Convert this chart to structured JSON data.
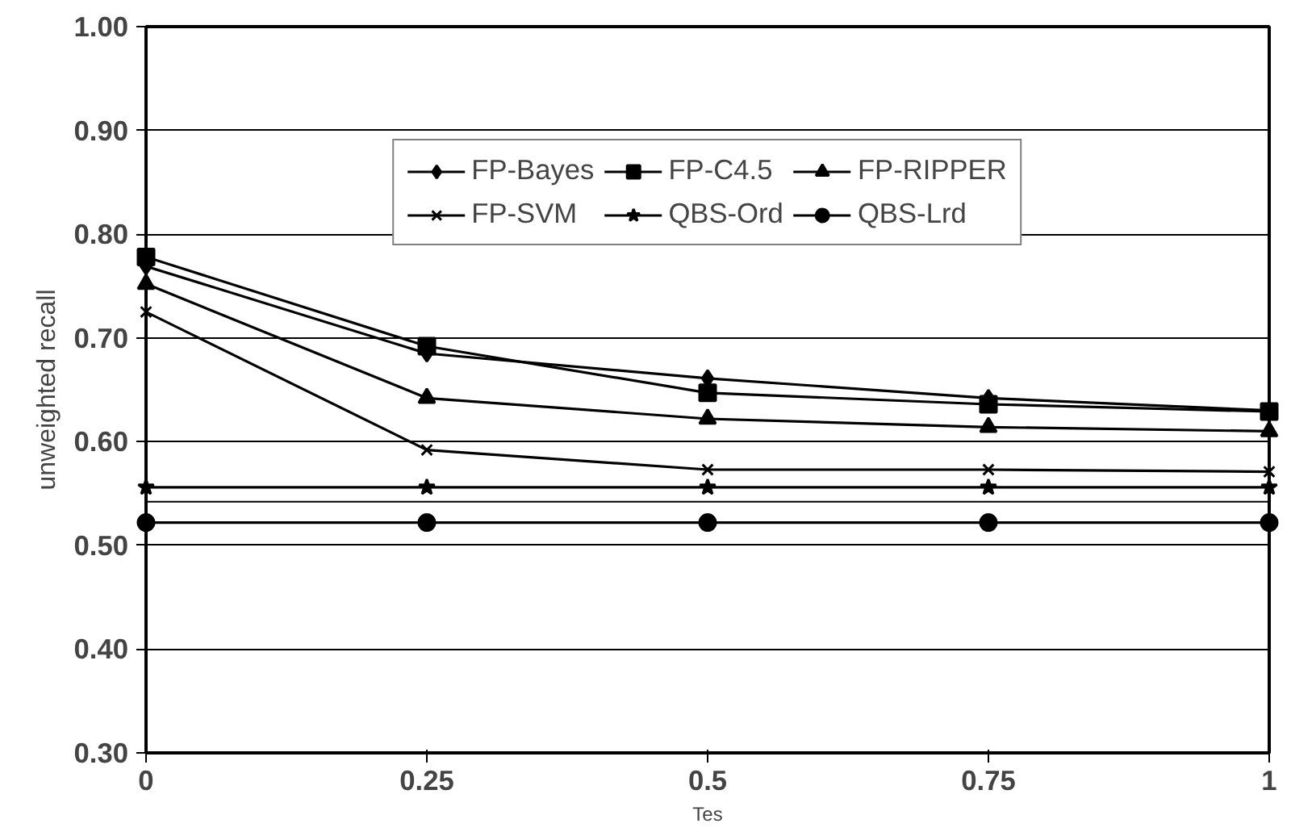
{
  "chart_data": {
    "type": "line",
    "xlabel": "Tes",
    "ylabel": "unweighted recall",
    "x": [
      0,
      0.25,
      0.5,
      0.75,
      1
    ],
    "xlim": [
      0,
      1
    ],
    "xticks": [
      0,
      0.25,
      0.5,
      0.75,
      1
    ],
    "ylim": [
      0.3,
      1.0
    ],
    "yticks": [
      {
        "value": 0.3,
        "label": "0.30"
      },
      {
        "value": 0.4,
        "label": "0.40"
      },
      {
        "value": 0.5,
        "label": "0.50"
      },
      {
        "value": 0.6,
        "label": "0.60"
      },
      {
        "value": 0.7,
        "label": "0.70"
      },
      {
        "value": 0.8,
        "label": "0.80"
      },
      {
        "value": 0.9,
        "label": "0.90"
      },
      {
        "value": 1.0,
        "label": "1.00"
      }
    ],
    "grid": "y",
    "legend": "top",
    "line_style": "solid",
    "ref_lines": [
      {
        "axis": "y",
        "value": 0.542,
        "color": "#000000"
      }
    ],
    "series": [
      {
        "name": "FP-Bayes",
        "color": "#000000",
        "marker": "diamond",
        "values": [
          0.769,
          0.685,
          0.661,
          0.642,
          0.63
        ]
      },
      {
        "name": "FP-C4.5",
        "color": "#000000",
        "marker": "square",
        "values": [
          0.778,
          0.692,
          0.647,
          0.636,
          0.629
        ]
      },
      {
        "name": "FP-RIPPER",
        "color": "#000000",
        "marker": "triangle",
        "values": [
          0.752,
          0.642,
          0.622,
          0.614,
          0.61
        ]
      },
      {
        "name": "FP-SVM",
        "color": "#000000",
        "marker": "cross",
        "values": [
          0.725,
          0.592,
          0.573,
          0.573,
          0.571
        ]
      },
      {
        "name": "QBS-Ord",
        "color": "#000000",
        "marker": "star",
        "values": [
          0.556,
          0.556,
          0.556,
          0.556,
          0.556
        ]
      },
      {
        "name": "QBS-Lrd",
        "color": "#000000",
        "marker": "circle",
        "values": [
          0.522,
          0.522,
          0.522,
          0.522,
          0.522
        ]
      }
    ]
  }
}
